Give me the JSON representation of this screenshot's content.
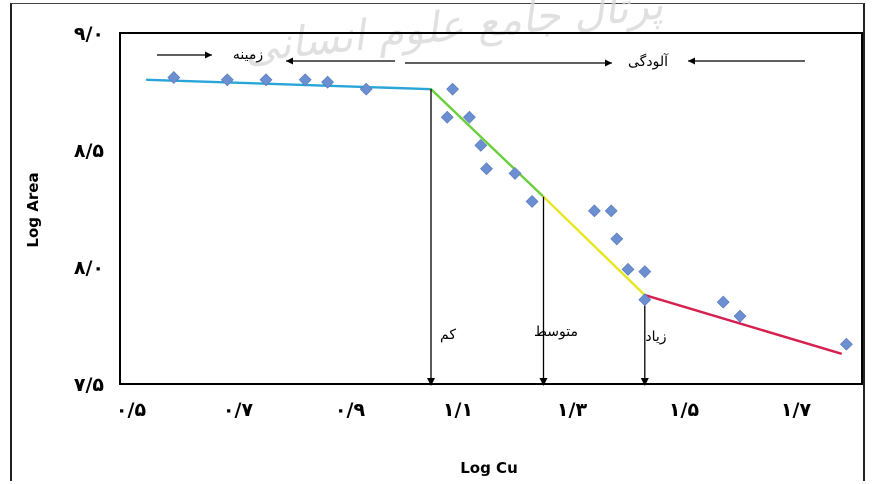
{
  "chart_data": {
    "type": "scatter",
    "title": "",
    "xlabel": "Log Cu",
    "ylabel": "Log Area",
    "xlim": [
      0.5,
      1.75
    ],
    "ylim": [
      7.5,
      9.0
    ],
    "x_ticks": [
      {
        "value": 0.5,
        "label": "۰/۵"
      },
      {
        "value": 0.7,
        "label": "۰/۷"
      },
      {
        "value": 0.9,
        "label": "۰/۹"
      },
      {
        "value": 1.1,
        "label": "۱/۱"
      },
      {
        "value": 1.3,
        "label": "۱/۳"
      },
      {
        "value": 1.5,
        "label": "۱/۵"
      },
      {
        "value": 1.7,
        "label": "۱/۷"
      }
    ],
    "y_ticks": [
      {
        "value": 7.5,
        "label": "۷/۵"
      },
      {
        "value": 8.0,
        "label": "۸/۰"
      },
      {
        "value": 8.5,
        "label": "۸/۵"
      },
      {
        "value": 9.0,
        "label": "۹/۰"
      }
    ],
    "grid": false,
    "series": [
      {
        "color": "#6b8fd0",
        "points": [
          [
            0.58,
            8.81
          ],
          [
            0.68,
            8.8
          ],
          [
            0.75,
            8.8
          ],
          [
            0.82,
            8.8
          ],
          [
            0.86,
            8.79
          ],
          [
            0.93,
            8.76
          ],
          [
            1.09,
            8.76
          ],
          [
            1.08,
            8.64
          ],
          [
            1.12,
            8.64
          ],
          [
            1.14,
            8.52
          ],
          [
            1.15,
            8.42
          ],
          [
            1.2,
            8.4
          ],
          [
            1.23,
            8.28
          ],
          [
            1.34,
            8.24
          ],
          [
            1.37,
            8.24
          ],
          [
            1.38,
            8.12
          ],
          [
            1.4,
            7.99
          ],
          [
            1.43,
            7.98
          ],
          [
            1.43,
            7.86
          ],
          [
            1.57,
            7.85
          ],
          [
            1.6,
            7.79
          ],
          [
            1.79,
            7.67
          ]
        ]
      }
    ],
    "trend_segments": [
      {
        "from": [
          0.53,
          8.8
        ],
        "to": [
          1.05,
          8.76
        ],
        "color": "#29a5d8"
      },
      {
        "from": [
          1.05,
          8.76
        ],
        "to": [
          1.25,
          8.3
        ],
        "color": "#6bcf3b"
      },
      {
        "from": [
          1.25,
          8.3
        ],
        "to": [
          1.43,
          7.88
        ],
        "color": "#e6e621"
      },
      {
        "from": [
          1.43,
          7.88
        ],
        "to": [
          1.78,
          7.63
        ],
        "color": "#d6204f"
      }
    ],
    "dividers": [
      1.05,
      1.25,
      1.43
    ],
    "annotations": {
      "background": "زمینه",
      "pollution": "آلودگی",
      "low": "کم",
      "medium": "متوسط",
      "high": "زیاد"
    }
  },
  "watermark_text": "پرتال جامع علوم انسانی"
}
